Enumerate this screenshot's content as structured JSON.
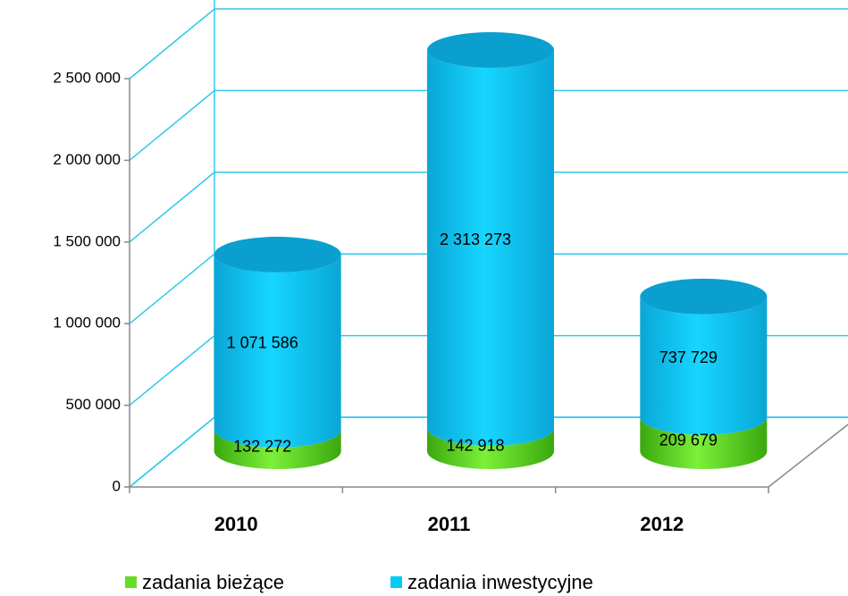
{
  "chart_data": {
    "type": "bar3d-stacked",
    "categories": [
      "2010",
      "2011",
      "2012"
    ],
    "series": [
      {
        "name": "zadania bieżące",
        "color": "#66dd22",
        "values": [
          132272,
          142918,
          209679
        ],
        "value_labels": [
          "132 272",
          "142 918",
          "209 679"
        ]
      },
      {
        "name": "zadania inwestycyjne",
        "color": "#00ccf5",
        "values": [
          1071586,
          2313273,
          737729
        ],
        "value_labels": [
          "1 071 586",
          "2 313 273",
          "737 729"
        ]
      }
    ],
    "ylim": [
      0,
      2500000
    ],
    "yticks": [
      0,
      {
        "value": 500000,
        "label": "500 000"
      },
      {
        "value": 1000000,
        "label": "1 000 000"
      },
      {
        "value": 1500000,
        "label": "1 500 000"
      },
      {
        "value": 2000000,
        "label": "2 000 000"
      },
      {
        "value": 2500000,
        "label": "2 500 000"
      }
    ],
    "grid": true,
    "legend": "bottom"
  }
}
